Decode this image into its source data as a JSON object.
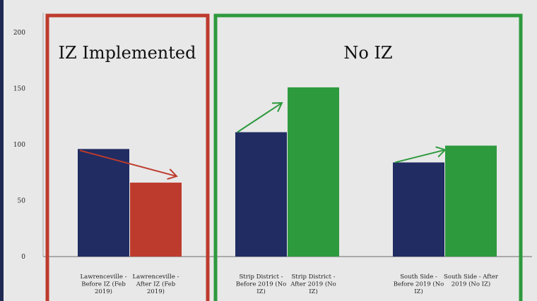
{
  "colors": {
    "background": "#e8e8e8",
    "iz_box": "#bd3b2d",
    "no_iz_box": "#2e9a3e",
    "before_bar": "#202c62",
    "after_iz": "#bd3b2d",
    "after_no_iz": "#2e9a3e",
    "axis": "#aaaaaa"
  },
  "panels": {
    "iz": {
      "title": "IZ Implemented"
    },
    "no_iz": {
      "title": "No IZ"
    }
  },
  "chart_data": {
    "type": "bar",
    "ylim": [
      0,
      200
    ],
    "yticks": [
      0,
      50,
      100,
      150,
      200
    ],
    "grid": false,
    "bars": [
      {
        "label": [
          "Lawrenceville -",
          "Before IZ (Feb",
          "2019)"
        ],
        "value": 96,
        "color": "#202c62"
      },
      {
        "label": [
          "Lawrenceville -",
          "After IZ (Feb",
          "2019)"
        ],
        "value": 66,
        "color": "#bd3b2d"
      },
      {
        "label": [
          "Strip District -",
          "Before 2019 (No",
          "IZ)"
        ],
        "value": 111,
        "color": "#202c62"
      },
      {
        "label": [
          "Strip District -",
          "After 2019 (No",
          "IZ)"
        ],
        "value": 151,
        "color": "#2e9a3e"
      },
      {
        "label": [
          "South Side -",
          "Before 2019 (No",
          "IZ)"
        ],
        "value": 84,
        "color": "#202c62"
      },
      {
        "label": [
          "South Side - After",
          "2019 (No IZ)"
        ],
        "value": 99,
        "color": "#2e9a3e"
      }
    ],
    "arrows": [
      {
        "from": 0,
        "to": 1,
        "color": "#bd3b2d"
      },
      {
        "from": 2,
        "to": 3,
        "color": "#2e9a3e"
      },
      {
        "from": 4,
        "to": 5,
        "color": "#2e9a3e"
      }
    ]
  }
}
